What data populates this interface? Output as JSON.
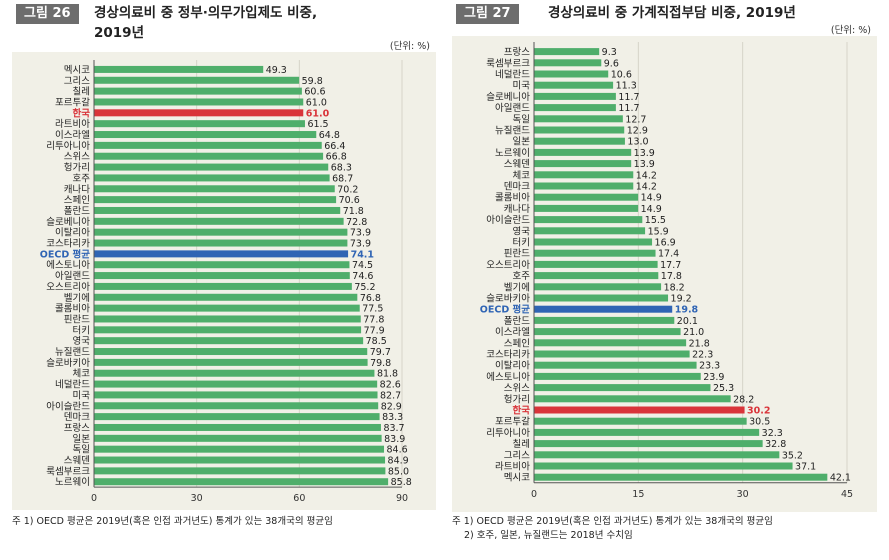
{
  "colors": {
    "bar": "#4fae6b",
    "korea": "#d9343a",
    "oecd": "#2f64b4",
    "axis": "#555555",
    "tag": "#6d6d6d"
  },
  "left": {
    "tag": "그림 26",
    "title_line1": "경상의료비 중 정부·의무가입제도 비중,",
    "title_line2": "2019년",
    "unit": "(단위: %)",
    "note1": "주 1) OECD 평균은 2019년(혹은 인접 과거년도) 통계가 있는 38개국의 평균임",
    "chart_data": {
      "type": "bar",
      "orientation": "horizontal",
      "xlim": [
        0,
        90
      ],
      "ticks": [
        0,
        30,
        60,
        90
      ],
      "categories": [
        "멕시코",
        "그리스",
        "칠레",
        "포르투갈",
        "한국",
        "라트비아",
        "이스라엘",
        "리투아니아",
        "스위스",
        "헝가리",
        "호주",
        "캐나다",
        "스페인",
        "폴란드",
        "슬로베니아",
        "이탈리아",
        "코스타리카",
        "OECD 평균",
        "에스토니아",
        "아일랜드",
        "오스트리아",
        "벨기에",
        "콜롬비아",
        "핀란드",
        "터키",
        "영국",
        "뉴질랜드",
        "슬로바키아",
        "체코",
        "네덜란드",
        "미국",
        "아이슬란드",
        "덴마크",
        "프랑스",
        "일본",
        "독일",
        "스웨덴",
        "룩셈부르크",
        "노르웨이"
      ],
      "values": [
        49.3,
        59.8,
        60.6,
        61.0,
        61.0,
        61.5,
        64.8,
        66.4,
        66.8,
        68.3,
        68.7,
        70.2,
        70.6,
        71.8,
        72.8,
        73.9,
        73.9,
        74.1,
        74.5,
        74.6,
        75.2,
        76.8,
        77.5,
        77.8,
        77.9,
        78.5,
        79.7,
        79.8,
        81.8,
        82.6,
        82.7,
        82.9,
        83.3,
        83.7,
        83.9,
        84.6,
        84.9,
        85.0,
        85.8
      ],
      "labels": [
        "49.3",
        "59.8",
        "60.6",
        "61.0",
        "61.0",
        "61.5",
        "64.8",
        "66.4",
        "66.8",
        "68.3",
        "68.7",
        "70.2",
        "70.6",
        "71.8",
        "72.8",
        "73.9",
        "73.9",
        "74.1",
        "74.5",
        "74.6",
        "75.2",
        "76.8",
        "77.5",
        "77.8",
        "77.9",
        "78.5",
        "79.7",
        "79.8",
        "81.8",
        "82.6",
        "82.7",
        "82.9",
        "83.3",
        "83.7",
        "83.9",
        "84.6",
        "84.9",
        "85.0",
        "85.8"
      ],
      "highlight": {
        "한국": "korea",
        "OECD 평균": "oecd"
      }
    }
  },
  "right": {
    "tag": "그림 27",
    "title_line1": "경상의료비 중 가계직접부담 비중, 2019년",
    "unit": "(단위: %)",
    "note1": "주 1) OECD 평균은 2019년(혹은 인접 과거년도) 통계가 있는 38개국의 평균임",
    "note2": "2) 호주, 일본, 뉴질랜드는 2018년 수치임",
    "chart_data": {
      "type": "bar",
      "orientation": "horizontal",
      "xlim": [
        0,
        45
      ],
      "ticks": [
        0,
        15,
        30,
        45
      ],
      "categories": [
        "프랑스",
        "룩셈부르크",
        "네덜란드",
        "미국",
        "슬로베니아",
        "아일랜드",
        "독일",
        "뉴질랜드",
        "일본",
        "노르웨이",
        "스웨덴",
        "체코",
        "덴마크",
        "콜롬비아",
        "캐나다",
        "아이슬란드",
        "영국",
        "터키",
        "핀란드",
        "오스트리아",
        "호주",
        "벨기에",
        "슬로바키아",
        "OECD 평균",
        "폴란드",
        "이스라엘",
        "스페인",
        "코스타리카",
        "이탈리아",
        "에스토니아",
        "스위스",
        "헝가리",
        "한국",
        "포르투갈",
        "리투아니아",
        "칠레",
        "그리스",
        "라트비아",
        "멕시코"
      ],
      "values": [
        9.3,
        9.6,
        10.6,
        11.3,
        11.7,
        11.7,
        12.7,
        12.9,
        13.0,
        13.9,
        13.9,
        14.2,
        14.2,
        14.9,
        14.9,
        15.5,
        15.9,
        16.9,
        17.4,
        17.7,
        17.8,
        18.2,
        19.2,
        19.8,
        20.1,
        21.0,
        21.8,
        22.3,
        23.3,
        23.9,
        25.3,
        28.2,
        30.2,
        30.5,
        32.3,
        32.8,
        35.2,
        37.1,
        42.1
      ],
      "labels": [
        "9.3",
        "9.6",
        "10.6",
        "11.3",
        "11.7",
        "11.7",
        "12.7",
        "12.9",
        "13.0",
        "13.9",
        "13.9",
        "14.2",
        "14.2",
        "14.9",
        "14.9",
        "15.5",
        "15.9",
        "16.9",
        "17.4",
        "17.7",
        "17.8",
        "18.2",
        "19.2",
        "19.8",
        "20.1",
        "21.0",
        "21.8",
        "22.3",
        "23.3",
        "23.9",
        "25.3",
        "28.2",
        "30.2",
        "30.5",
        "32.3",
        "32.8",
        "35.2",
        "37.1",
        "42.1"
      ],
      "highlight": {
        "한국": "korea",
        "OECD 평균": "oecd"
      }
    }
  }
}
